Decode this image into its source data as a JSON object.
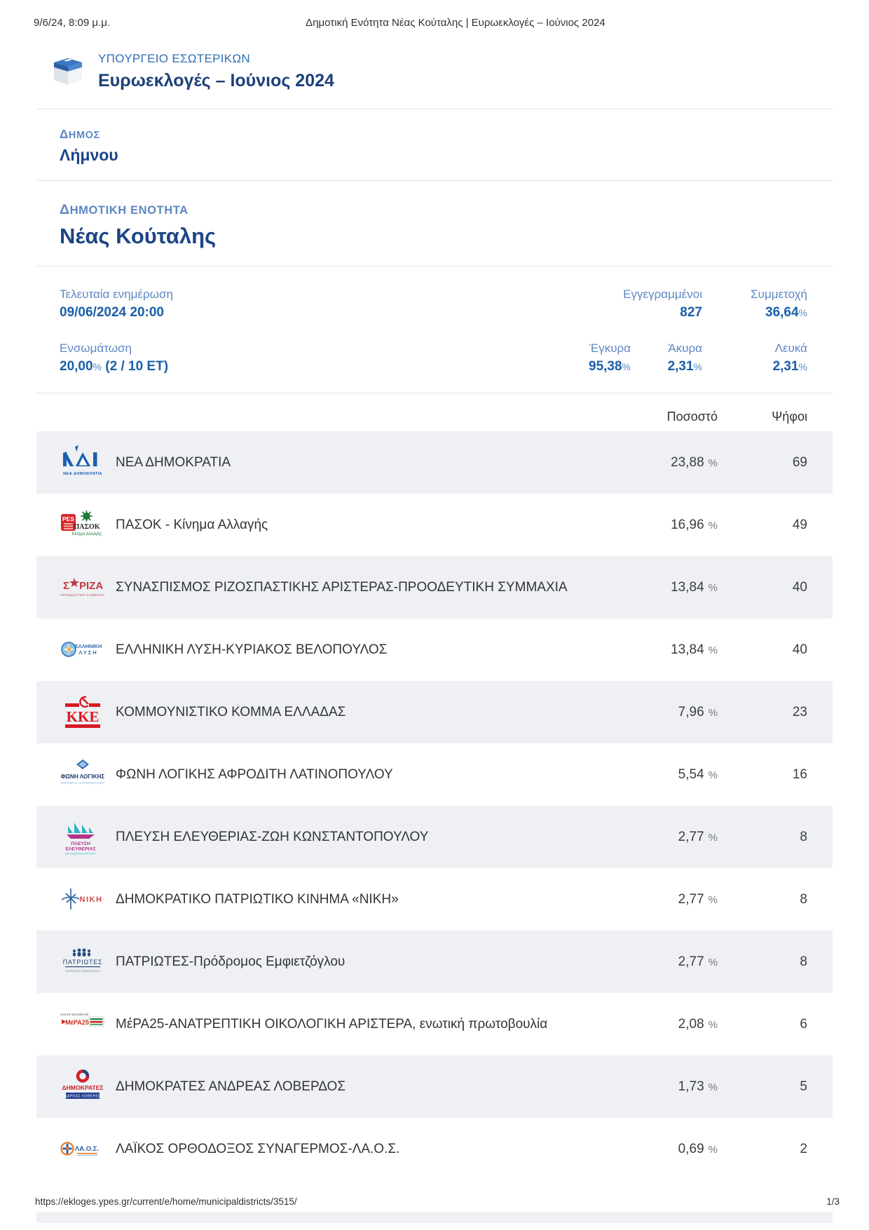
{
  "browser_header": {
    "datetime": "9/6/24, 8:09 μ.μ.",
    "title": "Δημοτική Ενότητα Νέας Κούταλης | Ευρωεκλογές – Ιούνιος 2024"
  },
  "site_header": {
    "logo_icon": "ballot-box-icon",
    "ministry": "ΥΠΟΥΡΓΕΙΟ ΕΣΩΤΕΡΙΚΩΝ",
    "election": "Ευρωεκλογές – Ιούνιος 2024"
  },
  "municipality": {
    "label": "ΔΗΜΟΣ",
    "name": "Λήμνου"
  },
  "district": {
    "label": "ΔΗΜΟΤΙΚΗ ΕΝΟΤΗΤΑ",
    "name": "Νέας Κούταλης"
  },
  "stats": {
    "last_update": {
      "label": "Τελευταία ενημέρωση",
      "value": "09/06/2024 20:00"
    },
    "registered": {
      "label": "Εγγεγραμμένοι",
      "value": "827"
    },
    "turnout": {
      "label": "Συμμετοχή",
      "value": "36,64",
      "unit": "%"
    },
    "integration": {
      "label": "Ενσωμάτωση",
      "value": "20,00",
      "unit": "%",
      "suffix": " (2 / 10 ΕΤ)"
    },
    "valid": {
      "label": "Έγκυρα",
      "value": "95,38",
      "unit": "%"
    },
    "invalid": {
      "label": "Άκυρα",
      "value": "2,31",
      "unit": "%"
    },
    "blank": {
      "label": "Λευκά",
      "value": "2,31",
      "unit": "%"
    }
  },
  "results_table": {
    "columns": {
      "percent": "Ποσοστό",
      "votes": "Ψήφοι"
    },
    "percent_unit": "%",
    "rows": [
      {
        "party": "ΝΕΑ ΔΗΜΟΚΡΑΤΙΑ",
        "logo": "nd-party-logo",
        "percent": "23,88",
        "votes": "69"
      },
      {
        "party": "ΠΑΣΟΚ - Κίνημα Αλλαγής",
        "logo": "pasok-party-logo",
        "percent": "16,96",
        "votes": "49"
      },
      {
        "party": "ΣΥΝΑΣΠΙΣΜΟΣ ΡΙΖΟΣΠΑΣΤΙΚΗΣ ΑΡΙΣΤΕΡΑΣ-ΠΡΟΟΔΕΥΤΙΚΗ ΣΥΜΜΑΧΙΑ",
        "logo": "syriza-party-logo",
        "percent": "13,84",
        "votes": "40"
      },
      {
        "party": "ΕΛΛΗΝΙΚΗ ΛΥΣΗ-ΚΥΡΙΑΚΟΣ ΒΕΛΟΠΟΥΛΟΣ",
        "logo": "elliniki-lysi-party-logo",
        "percent": "13,84",
        "votes": "40"
      },
      {
        "party": "ΚΟΜΜΟΥΝΙΣΤΙΚΟ ΚΟΜΜΑ ΕΛΛΑΔΑΣ",
        "logo": "kke-party-logo",
        "percent": "7,96",
        "votes": "23"
      },
      {
        "party": "ΦΩΝΗ ΛΟΓΙΚΗΣ ΑΦΡΟΔΙΤΗ ΛΑΤΙΝΟΠΟΥΛΟΥ",
        "logo": "foni-logikis-party-logo",
        "percent": "5,54",
        "votes": "16"
      },
      {
        "party": "ΠΛΕΥΣΗ ΕΛΕΥΘΕΡΙΑΣ-ΖΩΗ ΚΩΝΣΤΑΝΤΟΠΟΥΛΟΥ",
        "logo": "plefsi-eleftherias-party-logo",
        "percent": "2,77",
        "votes": "8"
      },
      {
        "party": "ΔΗΜΟΚΡΑΤΙΚΟ ΠΑΤΡΙΩΤΙΚΟ ΚΙΝΗΜΑ «ΝΙΚΗ»",
        "logo": "niki-party-logo",
        "percent": "2,77",
        "votes": "8"
      },
      {
        "party": "ΠΑΤΡΙΩΤΕΣ-Πρόδρομος Εμφιετζόγλου",
        "logo": "patriotes-party-logo",
        "percent": "2,77",
        "votes": "8"
      },
      {
        "party": "ΜέΡΑ25-ΑΝΑΤΡΕΠΤΙΚΗ ΟΙΚΟΛΟΓΙΚΗ ΑΡΙΣΤΕΡΑ, ενωτική πρωτοβουλία",
        "logo": "mera25-party-logo",
        "percent": "2,08",
        "votes": "6"
      },
      {
        "party": "ΔΗΜΟΚΡΑΤΕΣ ΑΝΔΡΕΑΣ ΛΟΒΕΡΔΟΣ",
        "logo": "dimokrates-party-logo",
        "percent": "1,73",
        "votes": "5"
      },
      {
        "party": "ΛΑΪΚΟΣ ΟΡΘΟΔΟΞΟΣ ΣΥΝΑΓΕΡΜΟΣ-ΛΑ.Ο.Σ.",
        "logo": "laos-party-logo",
        "percent": "0,69",
        "votes": "2"
      }
    ]
  },
  "footer": {
    "url": "https://ekloges.ypes.gr/current/e/home/municipaldistricts/3515/",
    "page": "1/3"
  },
  "colors": {
    "label_blue": "#5d87c4",
    "value_blue": "#1a5fa8",
    "heading_navy": "#1c4586",
    "ministry_blue": "#2e6eb5",
    "row_alt": "#eef0f3",
    "divider": "#e2e5ea"
  }
}
